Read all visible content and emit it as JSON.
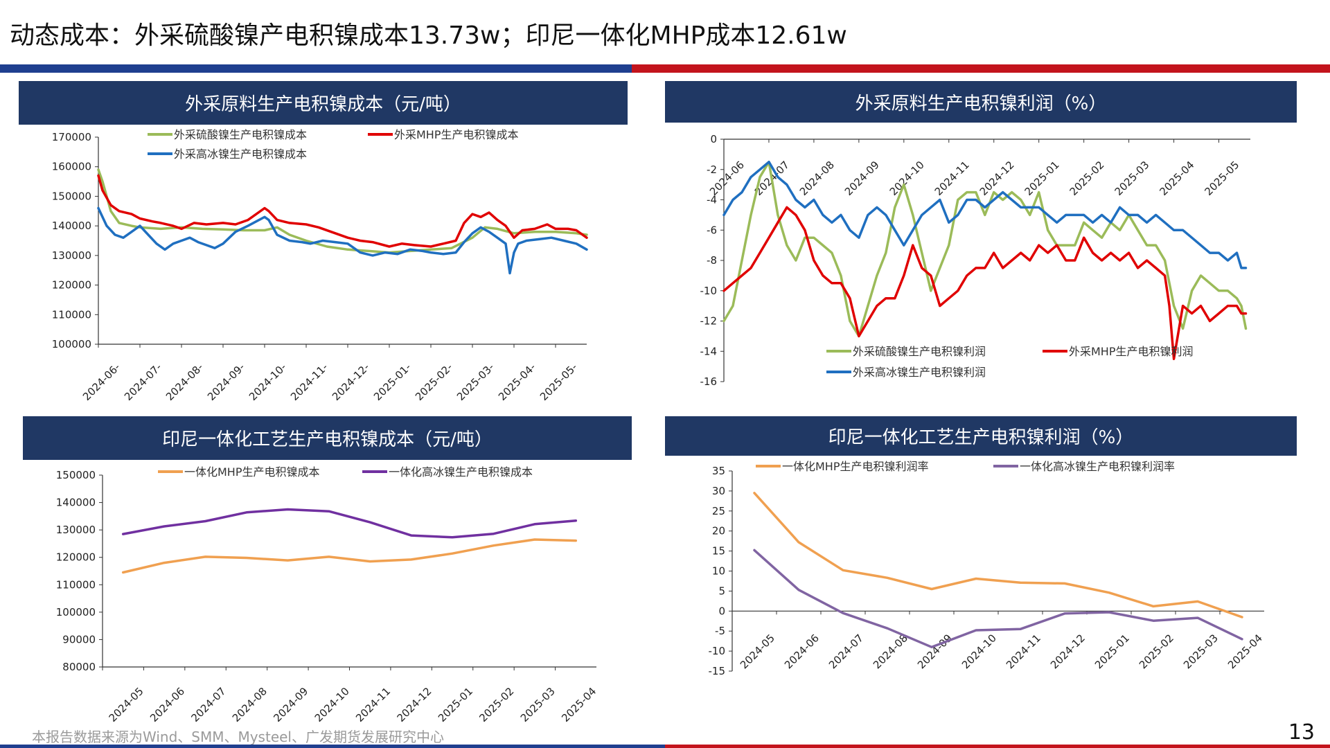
{
  "page": {
    "title": "动态成本：外采硫酸镍产电积镍成本13.73w；印尼一体化MHP成本12.61w",
    "footer": "本报告数据来源为Wind、SMM、Mysteel、广发期货发展研究中心",
    "page_number": "13",
    "colors": {
      "header_bg": "#203864",
      "rule_blue": "#1f3f8f",
      "rule_red": "#c3141c"
    }
  },
  "panels": [
    {
      "header": "外采原料生产电积镍成本（元/吨）"
    },
    {
      "header": "外采原料生产电积镍利润（%）"
    },
    {
      "header": "印尼一体化工艺生产电积镍成本（元/吨）"
    },
    {
      "header": "印尼一体化工艺生产电积镍利润（%）"
    }
  ],
  "chart_data": [
    {
      "type": "line",
      "title": "外采原料生产电积镍成本（元/吨）",
      "x_ticks": [
        "2024-06-",
        "2024-07-",
        "2024-08-",
        "2024-09-",
        "2024-10-",
        "2024-11-",
        "2024-12-",
        "2025-01-",
        "2025-02-",
        "2025-03-",
        "2025-04-",
        "2025-05-"
      ],
      "y_ticks": [
        "170000",
        "160000",
        "150000",
        "140000",
        "130000",
        "120000",
        "110000",
        "100000"
      ],
      "ylim": [
        100000,
        170000
      ],
      "legend": "top",
      "series": [
        {
          "name": "外采硫酸镍生产电积镍成本",
          "color": "#9bbb59",
          "x": [
            0,
            0.1,
            0.3,
            0.5,
            0.8,
            1,
            1.5,
            2,
            2.5,
            3,
            3.5,
            4,
            4.3,
            4.6,
            5,
            5.5,
            6,
            6.5,
            7,
            7.5,
            8,
            8.5,
            9,
            9.3,
            9.6,
            10,
            10.5,
            11,
            11.5,
            11.75
          ],
          "y": [
            159000,
            155000,
            145000,
            141000,
            140000,
            139500,
            139000,
            139500,
            139000,
            138800,
            138500,
            138500,
            139500,
            137000,
            135000,
            133000,
            132000,
            131500,
            131000,
            131500,
            132000,
            132500,
            136000,
            139500,
            139000,
            137500,
            138000,
            138000,
            137500,
            137000
          ]
        },
        {
          "name": "外采MHP生产电积镍成本",
          "color": "#e00000",
          "x": [
            0,
            0.1,
            0.3,
            0.5,
            0.8,
            1,
            1.3,
            1.5,
            1.8,
            2,
            2.3,
            2.6,
            3,
            3.3,
            3.6,
            4,
            4.1,
            4.3,
            4.6,
            5,
            5.3,
            5.6,
            6,
            6.3,
            6.6,
            7,
            7.3,
            7.6,
            8,
            8.3,
            8.6,
            8.8,
            9,
            9.2,
            9.4,
            9.6,
            9.8,
            10,
            10.2,
            10.5,
            10.8,
            11,
            11.3,
            11.5,
            11.75
          ],
          "y": [
            157000,
            152000,
            147000,
            145000,
            144000,
            142500,
            141500,
            141000,
            140000,
            139000,
            141000,
            140500,
            141000,
            140500,
            142000,
            146000,
            145000,
            142000,
            141000,
            140500,
            139500,
            138000,
            136000,
            135000,
            134500,
            133000,
            134000,
            133500,
            133000,
            134000,
            135000,
            141000,
            144000,
            143000,
            144500,
            142000,
            140000,
            136000,
            138500,
            139000,
            140500,
            139000,
            139000,
            138500,
            136000
          ]
        },
        {
          "name": "外采高冰镍生产电积镍成本",
          "color": "#1f6fc0",
          "x": [
            0,
            0.2,
            0.4,
            0.6,
            0.8,
            1,
            1.2,
            1.4,
            1.6,
            1.8,
            2,
            2.2,
            2.4,
            2.6,
            2.8,
            3,
            3.3,
            3.6,
            4,
            4.1,
            4.3,
            4.6,
            4.9,
            5.1,
            5.4,
            5.7,
            6,
            6.3,
            6.6,
            6.9,
            7.2,
            7.5,
            7.8,
            8,
            8.3,
            8.6,
            8.8,
            9,
            9.2,
            9.4,
            9.6,
            9.8,
            9.9,
            10,
            10.1,
            10.3,
            10.6,
            10.9,
            11.2,
            11.5,
            11.75
          ],
          "y": [
            146000,
            140000,
            137000,
            136000,
            138000,
            140000,
            137000,
            134000,
            132000,
            134000,
            135000,
            136000,
            134500,
            133500,
            132500,
            134000,
            138000,
            140000,
            143000,
            142000,
            137000,
            135000,
            134500,
            134000,
            135000,
            134500,
            134000,
            131000,
            130000,
            131000,
            130500,
            132000,
            131500,
            131000,
            130500,
            131000,
            134500,
            137500,
            139500,
            138000,
            136000,
            134000,
            124000,
            131000,
            134000,
            135000,
            135500,
            136000,
            135000,
            134000,
            132000
          ]
        }
      ]
    },
    {
      "type": "line",
      "title": "外采原料生产电积镍利润（%）",
      "x_ticks": [
        "2024-06",
        "2024-07",
        "2024-08",
        "2024-09",
        "2024-10",
        "2024-11",
        "2024-12",
        "2025-01",
        "2025-02",
        "2025-03",
        "2025-04",
        "2025-05"
      ],
      "y_ticks": [
        "0",
        "-2",
        "-4",
        "-6",
        "-8",
        "-10",
        "-12",
        "-14",
        "-16"
      ],
      "ylim": [
        -16,
        0
      ],
      "legend": "bottom",
      "series": [
        {
          "name": "外采硫酸镍生产电积镍利润",
          "color": "#9bbb59",
          "x": [
            0,
            0.2,
            0.4,
            0.6,
            0.8,
            1,
            1.2,
            1.4,
            1.6,
            1.8,
            2,
            2.2,
            2.4,
            2.6,
            2.8,
            3,
            3.2,
            3.4,
            3.6,
            3.8,
            4,
            4.2,
            4.4,
            4.6,
            4.8,
            5,
            5.2,
            5.4,
            5.6,
            5.8,
            6,
            6.2,
            6.4,
            6.6,
            6.8,
            7,
            7.2,
            7.4,
            7.6,
            7.8,
            8,
            8.2,
            8.4,
            8.6,
            8.8,
            9,
            9.2,
            9.4,
            9.6,
            9.8,
            10,
            10.2,
            10.4,
            10.6,
            10.8,
            11,
            11.2,
            11.4,
            11.5,
            11.6
          ],
          "y": [
            -12,
            -11,
            -8,
            -5,
            -2.5,
            -1.5,
            -5,
            -7,
            -8,
            -6.5,
            -6.5,
            -7,
            -7.5,
            -9,
            -12,
            -13,
            -11,
            -9,
            -7.5,
            -4.5,
            -3,
            -5,
            -7.5,
            -10,
            -8.5,
            -7,
            -4,
            -3.5,
            -3.5,
            -5,
            -3.5,
            -4,
            -3.5,
            -4,
            -5,
            -3.5,
            -6,
            -7,
            -7,
            -7,
            -5.5,
            -6,
            -6.5,
            -5.5,
            -6,
            -5,
            -6,
            -7,
            -7,
            -8,
            -11,
            -12.5,
            -10,
            -9,
            -9.5,
            -10,
            -10,
            -10.5,
            -11,
            -12.5
          ]
        },
        {
          "name": "外采MHP生产电积镍利润",
          "color": "#e00000",
          "x": [
            0,
            0.2,
            0.4,
            0.6,
            0.8,
            1,
            1.2,
            1.4,
            1.6,
            1.8,
            2,
            2.2,
            2.4,
            2.6,
            2.8,
            3,
            3.2,
            3.4,
            3.6,
            3.8,
            4,
            4.2,
            4.4,
            4.6,
            4.8,
            5,
            5.2,
            5.4,
            5.6,
            5.8,
            6,
            6.2,
            6.4,
            6.6,
            6.8,
            7,
            7.2,
            7.4,
            7.6,
            7.8,
            8,
            8.2,
            8.4,
            8.6,
            8.8,
            9,
            9.2,
            9.4,
            9.6,
            9.8,
            9.9,
            10,
            10.2,
            10.4,
            10.6,
            10.8,
            11,
            11.2,
            11.4,
            11.5,
            11.6
          ],
          "y": [
            -10,
            -9.5,
            -9,
            -8.5,
            -7.5,
            -6.5,
            -5.5,
            -4.5,
            -5,
            -6,
            -8,
            -9,
            -9.5,
            -9.5,
            -10.5,
            -13,
            -12,
            -11,
            -10.5,
            -10.5,
            -9,
            -7,
            -8.5,
            -9,
            -11,
            -10.5,
            -10,
            -9,
            -8.5,
            -8.5,
            -7.5,
            -8.5,
            -8,
            -7.5,
            -8,
            -7,
            -7.5,
            -7,
            -8,
            -8,
            -6.5,
            -7.5,
            -8,
            -7.5,
            -8,
            -7.5,
            -8.5,
            -8,
            -8.5,
            -9,
            -11,
            -14.5,
            -11,
            -11.5,
            -11,
            -12,
            -11.5,
            -11,
            -11,
            -11.5,
            -11.5
          ]
        },
        {
          "name": "外采高冰镍生产电积镍利润",
          "color": "#1f6fc0",
          "x": [
            0,
            0.2,
            0.4,
            0.6,
            0.8,
            1,
            1.2,
            1.4,
            1.6,
            1.8,
            2,
            2.2,
            2.4,
            2.6,
            2.8,
            3,
            3.2,
            3.4,
            3.6,
            3.8,
            4,
            4.2,
            4.4,
            4.6,
            4.8,
            5,
            5.2,
            5.4,
            5.6,
            5.8,
            6,
            6.2,
            6.4,
            6.6,
            6.8,
            7,
            7.2,
            7.4,
            7.6,
            7.8,
            8,
            8.2,
            8.4,
            8.6,
            8.8,
            9,
            9.2,
            9.4,
            9.6,
            9.8,
            10,
            10.2,
            10.4,
            10.6,
            10.8,
            11,
            11.2,
            11.4,
            11.5,
            11.6
          ],
          "y": [
            -5,
            -4,
            -3.5,
            -2.5,
            -2,
            -1.5,
            -2.5,
            -3,
            -4,
            -4.5,
            -4,
            -5,
            -5.5,
            -5,
            -6,
            -6.5,
            -5,
            -4.5,
            -5,
            -6,
            -7,
            -6,
            -5,
            -4.5,
            -4,
            -5.5,
            -5,
            -4,
            -4,
            -4.5,
            -4,
            -3.5,
            -4,
            -4.5,
            -4.5,
            -4.5,
            -5,
            -5.5,
            -5,
            -5,
            -5,
            -5.5,
            -5,
            -5.5,
            -4.5,
            -5,
            -5,
            -5.5,
            -5,
            -5.5,
            -6,
            -6,
            -6.5,
            -7,
            -7.5,
            -7.5,
            -8,
            -7.5,
            -8.5,
            -8.5
          ]
        }
      ]
    },
    {
      "type": "line",
      "title": "印尼一体化工艺生产电积镍成本（元/吨）",
      "categories": [
        "2024-05",
        "2024-06",
        "2024-07",
        "2024-08",
        "2024-09",
        "2024-10",
        "2024-11",
        "2024-12",
        "2025-01",
        "2025-02",
        "2025-03",
        "2025-04"
      ],
      "y_ticks": [
        "150000",
        "140000",
        "130000",
        "120000",
        "110000",
        "100000",
        "90000",
        "80000"
      ],
      "ylim": [
        80000,
        150000
      ],
      "legend": "top",
      "series": [
        {
          "name": "一体化MHP生产电积镍成本",
          "color": "#f0a050",
          "values": [
            114500,
            118000,
            120200,
            119800,
            118900,
            120200,
            118500,
            119200,
            121400,
            124300,
            126500,
            126100
          ]
        },
        {
          "name": "一体化高冰镍生产电积镍成本",
          "color": "#7030a0",
          "values": [
            128500,
            131300,
            133200,
            136400,
            137500,
            136800,
            132800,
            128000,
            127300,
            128600,
            132100,
            133400
          ]
        }
      ]
    },
    {
      "type": "line",
      "title": "印尼一体化工艺生产电积镍利润（%）",
      "categories": [
        "2024-05",
        "2024-06",
        "2024-07",
        "2024-08",
        "2024-09",
        "2024-10",
        "2024-11",
        "2024-12",
        "2025-01",
        "2025-02",
        "2025-03",
        "2025-04"
      ],
      "y_ticks": [
        "35",
        "30",
        "25",
        "20",
        "15",
        "10",
        "5",
        "0",
        "-5",
        "-10",
        "-15"
      ],
      "ylim": [
        -15,
        35
      ],
      "legend": "top",
      "series": [
        {
          "name": "一体化MHP生产电积镍利润率",
          "color": "#f0a050",
          "values": [
            29.5,
            17.2,
            10.2,
            8.3,
            5.5,
            8.1,
            7.1,
            6.9,
            4.6,
            1.2,
            2.4,
            -1.5
          ]
        },
        {
          "name": "一体化高冰镍生产电积镍利润率",
          "color": "#8064a2",
          "values": [
            15.2,
            5.3,
            -0.5,
            -4.3,
            -9,
            -4.8,
            -4.5,
            -0.6,
            -0.3,
            -2.4,
            -1.7,
            -7
          ]
        }
      ]
    }
  ]
}
